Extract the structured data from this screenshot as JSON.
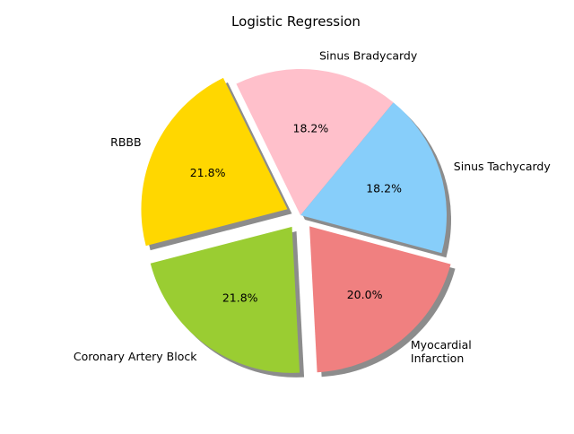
{
  "chart_data": {
    "type": "pie",
    "title": "Logistic Regression",
    "slices": [
      {
        "label": "Sinus Tachycardy",
        "value": 18.2,
        "pct_text": "18.2%",
        "color": "#87CEFA",
        "exploded": false
      },
      {
        "label": "Sinus Bradycardy",
        "value": 18.2,
        "pct_text": "18.2%",
        "color": "#FFC0CB",
        "exploded": false
      },
      {
        "label": "RBBB",
        "value": 21.8,
        "pct_text": "21.8%",
        "color": "#FFD700",
        "exploded": true
      },
      {
        "label": "Coronary Artery Block",
        "value": 21.8,
        "pct_text": "21.8%",
        "color": "#9ACD32",
        "exploded": true
      },
      {
        "label": "Myocardial\nInfarction",
        "value": 20.0,
        "pct_text": "20.0%",
        "color": "#F08080",
        "exploded": true
      }
    ],
    "shadow": true,
    "clockwise": false
  }
}
